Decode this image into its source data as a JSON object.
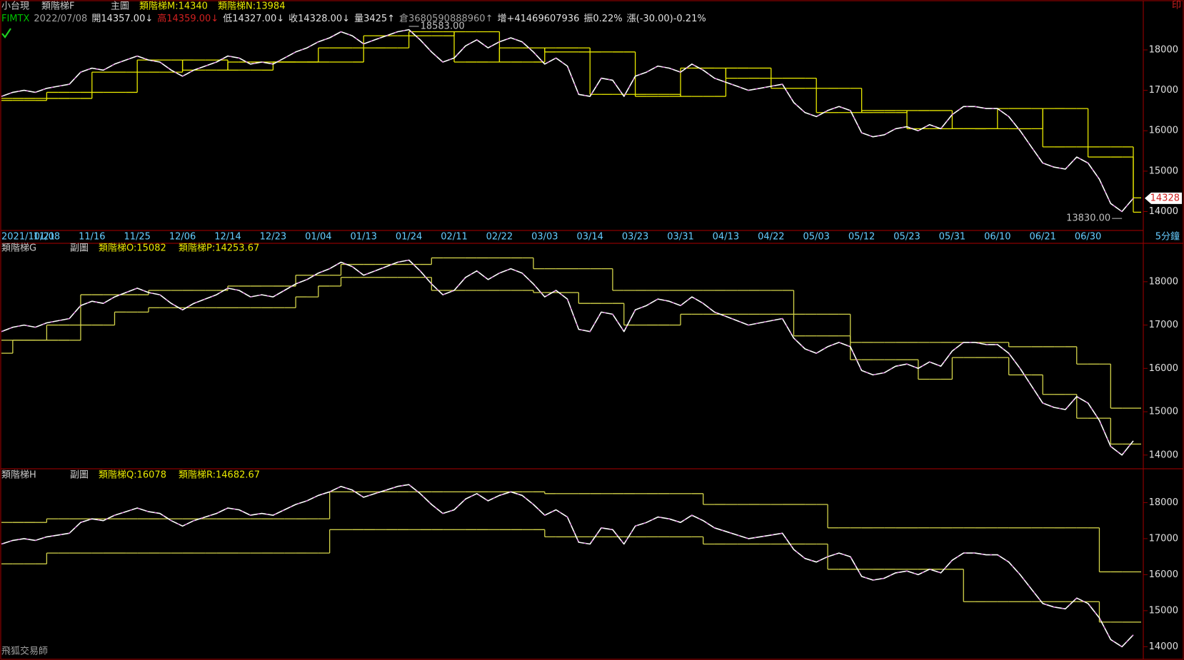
{
  "header": {
    "logo": "印",
    "footer": "飛狐交易師",
    "quote": [
      {
        "text": "FIMTX",
        "color": "#00c000"
      },
      {
        "text": "2022/07/08",
        "color": "#a0a0a0"
      },
      {
        "text": "開14357.00↓",
        "color": "#e0e0e0"
      },
      {
        "text": "高14359.00↓",
        "color": "#d02020"
      },
      {
        "text": "低14327.00↓",
        "color": "#e0e0e0"
      },
      {
        "text": "收14328.00↓",
        "color": "#e0e0e0"
      },
      {
        "text": "量3425↑",
        "color": "#e0e0e0"
      },
      {
        "text": "倉3680590888960↑",
        "color": "#a0a0a0"
      },
      {
        "text": "增+41469607936",
        "color": "#e0e0e0"
      },
      {
        "text": "振0.22%",
        "color": "#e0e0e0"
      },
      {
        "text": "漲(-30.00)-0.21%",
        "color": "#e0e0e0"
      }
    ]
  },
  "chart_data": [
    {
      "type": "line",
      "title": "類階梯F",
      "subtitle": "主圖",
      "x_unit": "5分鐘",
      "categories": [
        "2021/10/21",
        null,
        null,
        null,
        "11/08",
        null,
        null,
        null,
        "11/16",
        null,
        null,
        null,
        "11/25",
        null,
        null,
        null,
        "12/06",
        null,
        null,
        null,
        "12/14",
        null,
        null,
        null,
        "12/23",
        null,
        null,
        null,
        "01/04",
        null,
        null,
        null,
        "01/13",
        null,
        null,
        null,
        "01/24",
        null,
        null,
        null,
        "02/11",
        null,
        null,
        null,
        "02/22",
        null,
        null,
        null,
        "03/03",
        null,
        null,
        null,
        "03/14",
        null,
        null,
        null,
        "03/23",
        null,
        null,
        null,
        "03/31",
        null,
        null,
        null,
        "04/13",
        null,
        null,
        null,
        "04/22",
        null,
        null,
        null,
        "05/03",
        null,
        null,
        null,
        "05/12",
        null,
        null,
        null,
        "05/23",
        null,
        null,
        null,
        "05/31",
        null,
        null,
        null,
        "06/10",
        null,
        null,
        null,
        "06/21",
        null,
        null,
        null,
        "06/30",
        null,
        null,
        null,
        null
      ],
      "series": [
        {
          "name": "小台現",
          "style": "line",
          "color": "#ffffff",
          "values": [
            16850,
            16950,
            17000,
            16950,
            17050,
            17100,
            17150,
            17450,
            17550,
            17500,
            17650,
            17750,
            17850,
            17750,
            17700,
            17500,
            17350,
            17500,
            17600,
            17700,
            17850,
            17800,
            17650,
            17700,
            17650,
            17800,
            17950,
            18050,
            18200,
            18300,
            18450,
            18350,
            18150,
            18250,
            18350,
            18450,
            18500,
            18250,
            17950,
            17700,
            17800,
            18100,
            18250,
            18050,
            18200,
            18300,
            18200,
            17950,
            17650,
            17800,
            17600,
            16900,
            16850,
            17300,
            17250,
            16850,
            17350,
            17450,
            17600,
            17550,
            17450,
            17650,
            17500,
            17300,
            17200,
            17100,
            17000,
            17050,
            17100,
            17150,
            16700,
            16450,
            16350,
            16500,
            16600,
            16500,
            15950,
            15850,
            15900,
            16050,
            16100,
            16000,
            16150,
            16050,
            16400,
            16600,
            16600,
            16550,
            16550,
            16350,
            16000,
            15600,
            15200,
            15100,
            15050,
            15350,
            15200,
            14800,
            14200,
            14000,
            14328
          ]
        },
        {
          "name": "類階梯M:14340",
          "style": "step",
          "color": "#e8e800",
          "values": [
            16800,
            16800,
            16800,
            16800,
            16950,
            16950,
            16950,
            16950,
            17450,
            17450,
            17450,
            17450,
            17750,
            17750,
            17750,
            17750,
            17500,
            17500,
            17500,
            17500,
            17700,
            17700,
            17700,
            17700,
            17700,
            17700,
            17700,
            17700,
            18050,
            18050,
            18050,
            18050,
            18350,
            18350,
            18350,
            18350,
            18450,
            18450,
            18450,
            18450,
            17700,
            17700,
            17700,
            17700,
            18050,
            18050,
            18050,
            18050,
            17950,
            17950,
            17950,
            17950,
            16900,
            16900,
            16900,
            16900,
            16850,
            16850,
            16850,
            16850,
            17550,
            17550,
            17550,
            17550,
            17300,
            17300,
            17300,
            17300,
            17050,
            17050,
            17050,
            17050,
            16450,
            16450,
            16450,
            16450,
            16500,
            16500,
            16500,
            16500,
            16050,
            16050,
            16050,
            16050,
            16050,
            16050,
            16050,
            16050,
            16550,
            16550,
            16550,
            16550,
            15600,
            15600,
            15600,
            15600,
            15350,
            15350,
            15350,
            15350,
            14340
          ]
        },
        {
          "name": "類階梯N:13984",
          "style": "step",
          "color": "#e8e800",
          "values": [
            16750,
            16750,
            16750,
            16750,
            16800,
            16800,
            16800,
            16800,
            16950,
            16950,
            16950,
            16950,
            17450,
            17450,
            17450,
            17450,
            17750,
            17750,
            17750,
            17750,
            17500,
            17500,
            17500,
            17500,
            17700,
            17700,
            17700,
            17700,
            17700,
            17700,
            17700,
            17700,
            18050,
            18050,
            18050,
            18050,
            18350,
            18350,
            18350,
            18350,
            18450,
            18450,
            18450,
            18450,
            17700,
            17700,
            17700,
            17700,
            18050,
            18050,
            18050,
            18050,
            17950,
            17950,
            17950,
            17950,
            16900,
            16900,
            16900,
            16900,
            16850,
            16850,
            16850,
            16850,
            17550,
            17550,
            17550,
            17550,
            17300,
            17300,
            17300,
            17300,
            17050,
            17050,
            17050,
            17050,
            16450,
            16450,
            16450,
            16450,
            16500,
            16500,
            16500,
            16500,
            16050,
            16050,
            16050,
            16050,
            16050,
            16050,
            16050,
            16050,
            16550,
            16550,
            16550,
            16550,
            15600,
            15600,
            15600,
            15600,
            13984
          ]
        }
      ],
      "annotations": [
        {
          "value": 18583,
          "label": "18583.00",
          "at": 36
        },
        {
          "value": 13830,
          "label": "13830.00",
          "at": 99
        }
      ],
      "last": {
        "value": 14328,
        "label": "14328"
      },
      "ylim": [
        13550,
        19200
      ],
      "yticks": [
        14000,
        15000,
        16000,
        17000,
        18000
      ]
    },
    {
      "type": "line",
      "title": "類階梯G",
      "subtitle": "副圖",
      "series": [
        {
          "name": "類階梯O:15082",
          "style": "step",
          "color": "#d4d44a",
          "values": [
            16650,
            16650,
            16650,
            16650,
            17000,
            17000,
            17000,
            17700,
            17700,
            17700,
            17700,
            17700,
            17700,
            17800,
            17800,
            17800,
            17800,
            17800,
            17800,
            17800,
            17900,
            17900,
            17900,
            17900,
            17900,
            17900,
            18150,
            18150,
            18150,
            18150,
            18400,
            18400,
            18400,
            18400,
            18400,
            18400,
            18400,
            18400,
            18550,
            18550,
            18550,
            18550,
            18550,
            18550,
            18550,
            18550,
            18550,
            18300,
            18300,
            18300,
            18300,
            18300,
            18300,
            18300,
            17800,
            17800,
            17800,
            17800,
            17800,
            17800,
            17800,
            17800,
            17800,
            17800,
            17800,
            17800,
            17800,
            17800,
            17800,
            17800,
            17250,
            17250,
            17250,
            17250,
            17250,
            16600,
            16600,
            16600,
            16600,
            16600,
            16600,
            16600,
            16600,
            16600,
            16600,
            16600,
            16600,
            16600,
            16600,
            16500,
            16500,
            16500,
            16500,
            16500,
            16500,
            16100,
            16100,
            16100,
            15082,
            15082,
            15082
          ]
        },
        {
          "name": "類階梯P:14253.67",
          "style": "step",
          "color": "#d4d44a",
          "values": [
            16350,
            16650,
            16650,
            16650,
            16650,
            16650,
            16650,
            17000,
            17000,
            17000,
            17300,
            17300,
            17300,
            17400,
            17400,
            17400,
            17400,
            17400,
            17400,
            17400,
            17400,
            17400,
            17400,
            17400,
            17400,
            17400,
            17650,
            17650,
            17900,
            17900,
            18100,
            18100,
            18100,
            18100,
            18100,
            18100,
            18100,
            18100,
            17800,
            17800,
            17800,
            17800,
            17800,
            17800,
            17800,
            17800,
            17800,
            17750,
            17750,
            17750,
            17750,
            17500,
            17500,
            17500,
            17500,
            17000,
            17000,
            17000,
            17000,
            17000,
            17250,
            17250,
            17250,
            17250,
            17250,
            17250,
            17250,
            17250,
            17250,
            17250,
            16750,
            16750,
            16750,
            16750,
            16750,
            16200,
            16200,
            16200,
            16200,
            16200,
            16200,
            15750,
            15750,
            15750,
            16250,
            16250,
            16250,
            16250,
            16250,
            15850,
            15850,
            15850,
            15400,
            15400,
            15400,
            14850,
            14850,
            14850,
            14253.67,
            14253.67,
            14253.67
          ]
        }
      ],
      "ylim": [
        13700,
        18870
      ],
      "yticks": [
        14000,
        15000,
        16000,
        17000,
        18000
      ]
    },
    {
      "type": "line",
      "title": "類階梯H",
      "subtitle": "副圖",
      "series": [
        {
          "name": "類階梯Q:16078",
          "style": "step",
          "color": "#d4d44a",
          "values": [
            17450,
            17450,
            17450,
            17450,
            17550,
            17550,
            17550,
            17550,
            17550,
            17550,
            17550,
            17550,
            17550,
            17550,
            17550,
            17550,
            17550,
            17550,
            17550,
            17550,
            17550,
            17550,
            17550,
            17550,
            17550,
            17550,
            17550,
            17550,
            17550,
            18300,
            18300,
            18300,
            18300,
            18300,
            18300,
            18300,
            18300,
            18300,
            18300,
            18300,
            18300,
            18300,
            18300,
            18300,
            18300,
            18300,
            18300,
            18300,
            18250,
            18250,
            18250,
            18250,
            18250,
            18250,
            18250,
            18250,
            18250,
            18250,
            18250,
            18250,
            18250,
            18250,
            17950,
            17950,
            17950,
            17950,
            17950,
            17950,
            17950,
            17950,
            17950,
            17950,
            17950,
            17300,
            17300,
            17300,
            17300,
            17300,
            17300,
            17300,
            17300,
            17300,
            17300,
            17300,
            17300,
            17300,
            17300,
            17300,
            17300,
            17300,
            17300,
            17300,
            17300,
            17300,
            17300,
            17300,
            17300,
            16078,
            16078,
            16078,
            16078
          ]
        },
        {
          "name": "類階梯R:14682.67",
          "style": "step",
          "color": "#d4d44a",
          "values": [
            16300,
            16300,
            16300,
            16300,
            16600,
            16600,
            16600,
            16600,
            16600,
            16600,
            16600,
            16600,
            16600,
            16600,
            16600,
            16600,
            16600,
            16600,
            16600,
            16600,
            16600,
            16600,
            16600,
            16600,
            16600,
            16600,
            16600,
            16600,
            16600,
            17250,
            17250,
            17250,
            17250,
            17250,
            17250,
            17250,
            17250,
            17250,
            17250,
            17250,
            17250,
            17250,
            17250,
            17250,
            17250,
            17250,
            17250,
            17250,
            17050,
            17050,
            17050,
            17050,
            17050,
            17050,
            17050,
            17050,
            17050,
            17050,
            17050,
            17050,
            17050,
            17050,
            16850,
            16850,
            16850,
            16850,
            16850,
            16850,
            16850,
            16850,
            16850,
            16850,
            16850,
            16150,
            16150,
            16150,
            16150,
            16150,
            16150,
            16150,
            16150,
            16150,
            16150,
            16150,
            16150,
            15250,
            15250,
            15250,
            15250,
            15250,
            15250,
            15250,
            15250,
            15250,
            15250,
            15250,
            15250,
            14682.67,
            14682.67,
            14682.67,
            14682.67
          ]
        }
      ],
      "ylim": [
        13690,
        18920
      ],
      "yticks": [
        14000,
        15000,
        16000,
        17000,
        18000
      ]
    }
  ]
}
